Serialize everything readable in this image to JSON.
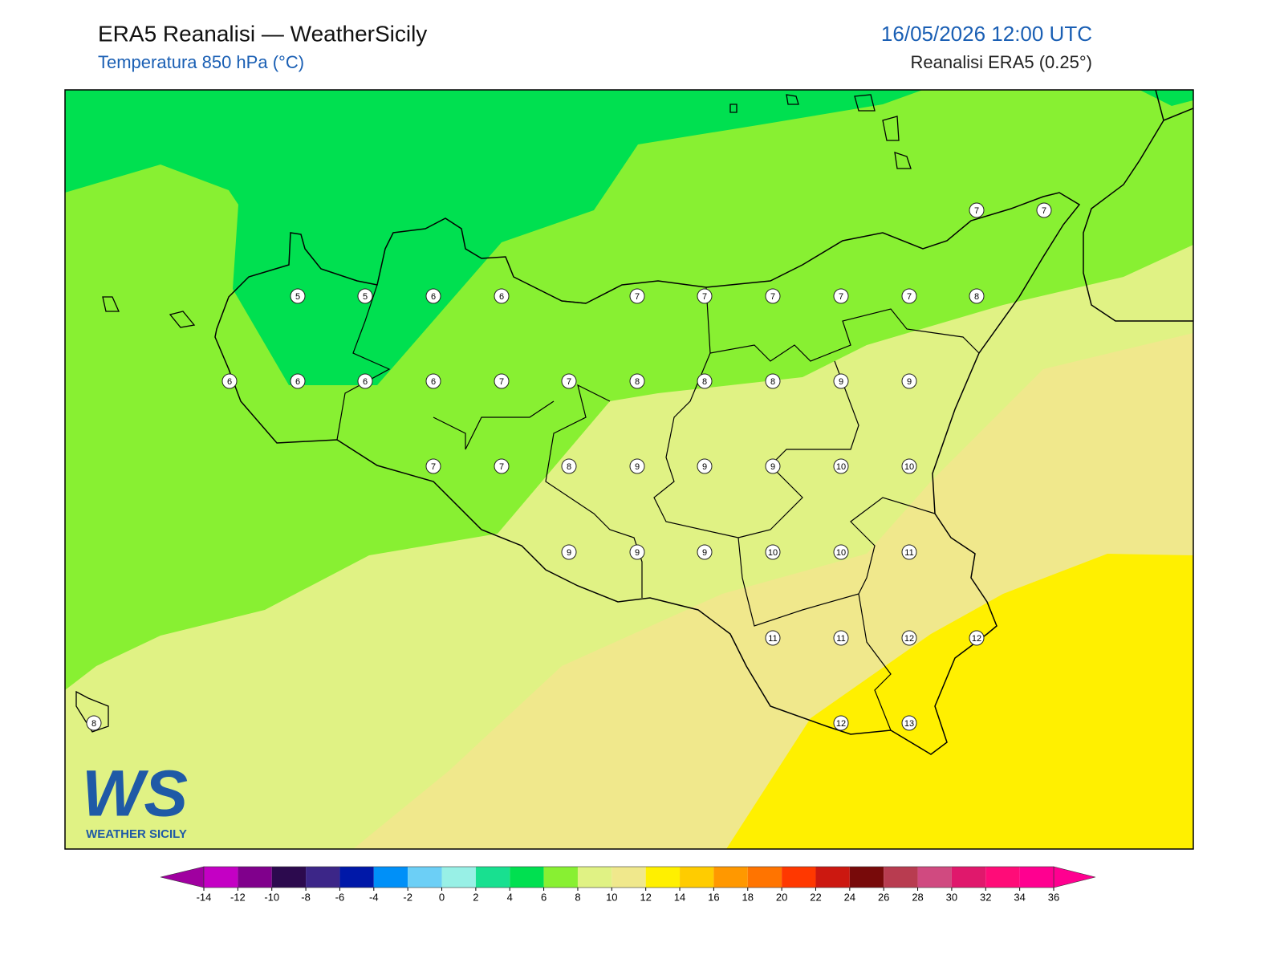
{
  "header": {
    "title": "ERA5 Reanalisi — WeatherSicily",
    "subtitle": "Temperatura 850 hPa (°C)",
    "datetime": "16/05/2026 12:00 UTC",
    "source": "Reanalisi ERA5 (0.25°)"
  },
  "stations": [
    5,
    5,
    6,
    6,
    7,
    7,
    7,
    7,
    7,
    8,
    7,
    7,
    6,
    6,
    6,
    6,
    7,
    7,
    8,
    8,
    8,
    9,
    9,
    7,
    7,
    8,
    9,
    9,
    9,
    10,
    10,
    9,
    9,
    9,
    10,
    10,
    11,
    11,
    11,
    12,
    12,
    8,
    12,
    13
  ],
  "colorbar": {
    "ticks": [
      -14,
      -12,
      -10,
      -8,
      -6,
      -4,
      -2,
      0,
      2,
      4,
      6,
      8,
      10,
      12,
      14,
      16,
      18,
      20,
      22,
      24,
      26,
      28,
      30,
      32,
      34,
      36
    ],
    "colors": [
      "#c400c4",
      "#80008c",
      "#2c0a4e",
      "#3c2688",
      "#0018a8",
      "#0090f8",
      "#6ccff6",
      "#98f0e6",
      "#18e090",
      "#00e050",
      "#88f032",
      "#e0f284",
      "#f0e88c",
      "#fff000",
      "#ffcc00",
      "#ff9800",
      "#ff7400",
      "#ff3800",
      "#cc1810",
      "#780a0a",
      "#b83c50",
      "#d04a80",
      "#e0186c",
      "#ff0c78",
      "#ff0090"
    ],
    "under_color": "#a000a0",
    "over_color": "#ff0090"
  },
  "logo": {
    "mark": "WS",
    "text": "WEATHER SICILY"
  }
}
